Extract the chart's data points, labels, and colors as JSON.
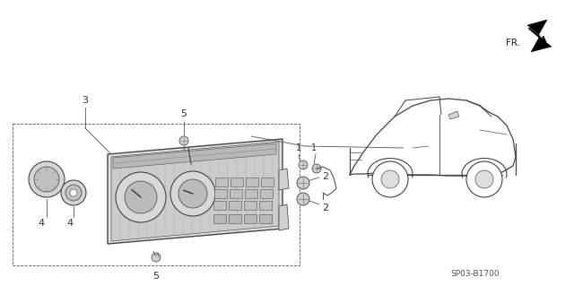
{
  "bg_color": "#ffffff",
  "part_code": "SP03-B1700",
  "line_color": "#333333",
  "lw": 0.8,
  "fig_w": 6.4,
  "fig_h": 3.19,
  "dpi": 100
}
